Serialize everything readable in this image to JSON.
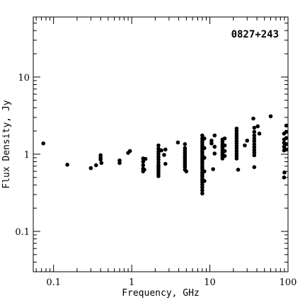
{
  "chart_data": {
    "type": "scatter",
    "title": "0827+243",
    "xlabel": "Frequency, GHz",
    "ylabel": "Flux Density, Jy",
    "x_scale": "log",
    "y_scale": "log",
    "xlim": [
      0.055,
      100
    ],
    "ylim": [
      0.03,
      60
    ],
    "x_ticks": [
      0.1,
      1,
      10,
      100
    ],
    "x_tick_labels": [
      "0.1",
      "1",
      "10",
      "100"
    ],
    "y_ticks": [
      0.1,
      1,
      10
    ],
    "y_tick_labels": [
      "0.1",
      "1",
      "10"
    ],
    "grid": false,
    "legend": "none",
    "marker_color": "#000000",
    "points": [
      [
        0.074,
        1.38
      ],
      [
        0.15,
        0.73
      ],
      [
        0.3,
        0.66
      ],
      [
        0.35,
        0.72
      ],
      [
        0.4,
        0.97
      ],
      [
        0.4,
        0.9
      ],
      [
        0.4,
        0.85
      ],
      [
        0.41,
        0.77
      ],
      [
        0.7,
        0.83
      ],
      [
        0.7,
        0.77
      ],
      [
        0.9,
        1.04
      ],
      [
        0.95,
        1.1
      ],
      [
        1.4,
        0.88
      ],
      [
        1.4,
        0.8
      ],
      [
        1.4,
        0.72
      ],
      [
        1.4,
        0.65
      ],
      [
        1.4,
        0.6
      ],
      [
        1.45,
        0.63
      ],
      [
        1.5,
        0.87
      ],
      [
        2.2,
        1.3
      ],
      [
        2.2,
        1.18
      ],
      [
        2.2,
        1.08
      ],
      [
        2.2,
        1.0
      ],
      [
        2.2,
        0.92
      ],
      [
        2.2,
        0.85
      ],
      [
        2.2,
        0.78
      ],
      [
        2.2,
        0.72
      ],
      [
        2.2,
        0.68
      ],
      [
        2.2,
        0.64
      ],
      [
        2.2,
        0.6
      ],
      [
        2.2,
        0.56
      ],
      [
        2.2,
        0.52
      ],
      [
        2.4,
        1.12
      ],
      [
        2.6,
        0.98
      ],
      [
        2.7,
        1.15
      ],
      [
        2.7,
        0.75
      ],
      [
        3.9,
        1.42
      ],
      [
        4.8,
        1.35
      ],
      [
        4.8,
        1.2
      ],
      [
        4.8,
        1.12
      ],
      [
        4.8,
        1.05
      ],
      [
        4.8,
        0.98
      ],
      [
        4.8,
        0.92
      ],
      [
        4.8,
        0.87
      ],
      [
        4.8,
        0.82
      ],
      [
        4.8,
        0.77
      ],
      [
        4.8,
        0.72
      ],
      [
        4.8,
        0.68
      ],
      [
        4.8,
        0.63
      ],
      [
        5.0,
        0.6
      ],
      [
        8.0,
        1.75
      ],
      [
        8.0,
        1.6
      ],
      [
        8.0,
        1.5
      ],
      [
        8.0,
        1.4
      ],
      [
        8.0,
        1.3
      ],
      [
        8.0,
        1.22
      ],
      [
        8.0,
        1.15
      ],
      [
        8.0,
        1.08
      ],
      [
        8.0,
        1.02
      ],
      [
        8.0,
        0.96
      ],
      [
        8.0,
        0.9
      ],
      [
        8.0,
        0.85
      ],
      [
        8.0,
        0.8
      ],
      [
        8.0,
        0.75
      ],
      [
        8.0,
        0.7
      ],
      [
        8.0,
        0.66
      ],
      [
        8.0,
        0.62
      ],
      [
        8.0,
        0.58
      ],
      [
        8.0,
        0.55
      ],
      [
        8.0,
        0.52
      ],
      [
        8.0,
        0.49
      ],
      [
        8.0,
        0.46
      ],
      [
        8.0,
        0.43
      ],
      [
        8.0,
        0.4
      ],
      [
        8.0,
        0.37
      ],
      [
        8.0,
        0.34
      ],
      [
        8.0,
        0.31
      ],
      [
        8.5,
        1.6
      ],
      [
        8.5,
        1.2
      ],
      [
        8.5,
        0.9
      ],
      [
        8.5,
        0.6
      ],
      [
        8.5,
        0.45
      ],
      [
        10.5,
        1.5
      ],
      [
        10.5,
        1.38
      ],
      [
        11.0,
        0.64
      ],
      [
        11.5,
        1.75
      ],
      [
        11.5,
        1.25
      ],
      [
        11.5,
        1.02
      ],
      [
        14.5,
        1.55
      ],
      [
        14.5,
        1.45
      ],
      [
        14.5,
        1.35
      ],
      [
        14.5,
        1.28
      ],
      [
        14.5,
        1.2
      ],
      [
        14.5,
        1.13
      ],
      [
        14.5,
        1.06
      ],
      [
        14.5,
        1.0
      ],
      [
        14.5,
        0.94
      ],
      [
        14.5,
        0.88
      ],
      [
        15.5,
        1.6
      ],
      [
        15.5,
        1.3
      ],
      [
        15.5,
        1.1
      ],
      [
        15.5,
        0.95
      ],
      [
        22.0,
        2.15
      ],
      [
        22.0,
        2.0
      ],
      [
        22.0,
        1.85
      ],
      [
        22.0,
        1.72
      ],
      [
        22.0,
        1.6
      ],
      [
        22.0,
        1.48
      ],
      [
        22.0,
        1.38
      ],
      [
        22.0,
        1.28
      ],
      [
        22.0,
        1.19
      ],
      [
        22.0,
        1.1
      ],
      [
        22.0,
        1.02
      ],
      [
        22.0,
        0.95
      ],
      [
        22.0,
        0.88
      ],
      [
        23.0,
        0.63
      ],
      [
        28.0,
        1.3
      ],
      [
        30.0,
        1.5
      ],
      [
        36.0,
        2.9
      ],
      [
        37.0,
        2.2
      ],
      [
        37.0,
        1.95
      ],
      [
        37.0,
        1.75
      ],
      [
        37.0,
        1.6
      ],
      [
        37.0,
        1.48
      ],
      [
        37.0,
        1.35
      ],
      [
        37.0,
        1.24
      ],
      [
        37.0,
        1.14
      ],
      [
        37.0,
        1.05
      ],
      [
        37.0,
        0.97
      ],
      [
        37.0,
        0.68
      ],
      [
        41.0,
        2.3
      ],
      [
        43.0,
        1.85
      ],
      [
        60.0,
        3.1
      ],
      [
        89.0,
        1.85
      ],
      [
        89.0,
        1.55
      ],
      [
        89.0,
        1.4
      ],
      [
        89.0,
        1.25
      ],
      [
        89.0,
        1.12
      ],
      [
        89.0,
        0.5
      ],
      [
        90.0,
        0.58
      ],
      [
        95.0,
        2.35
      ],
      [
        95.0,
        1.95
      ],
      [
        95.0,
        1.62
      ],
      [
        95.0,
        1.35
      ],
      [
        95.0,
        1.15
      ]
    ]
  }
}
